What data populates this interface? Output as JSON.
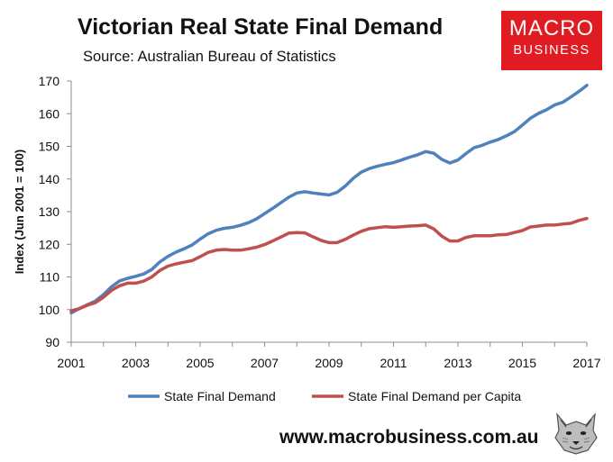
{
  "header": {
    "title": "Victorian Real State Final Demand",
    "subtitle": "Source: Australian Bureau of Statistics"
  },
  "brand": {
    "line1": "MACRO",
    "line2": "BUSINESS",
    "color": "#e11b22"
  },
  "footer": {
    "website": "www.macrobusiness.com.au",
    "logo_icon": "wolf-icon"
  },
  "chart_data": {
    "type": "line",
    "title": "Victorian Real State Final Demand",
    "subtitle": "Source: Australian Bureau of Statistics",
    "xlabel": "",
    "ylabel": "Index (Jun 2001 = 100)",
    "xlim": [
      2001,
      2017
    ],
    "ylim": [
      90,
      170
    ],
    "xticks": [
      2001,
      2003,
      2005,
      2007,
      2009,
      2011,
      2013,
      2015,
      2017
    ],
    "yticks": [
      90,
      100,
      110,
      120,
      130,
      140,
      150,
      160,
      170
    ],
    "legend": "bottom",
    "grid": false,
    "series": [
      {
        "name": "State Final Demand",
        "color": "#4f81bd",
        "x": [
          2001.0,
          2001.25,
          2001.5,
          2001.75,
          2002.0,
          2002.25,
          2002.5,
          2002.75,
          2003.0,
          2003.25,
          2003.5,
          2003.75,
          2004.0,
          2004.25,
          2004.5,
          2004.75,
          2005.0,
          2005.25,
          2005.5,
          2005.75,
          2006.0,
          2006.25,
          2006.5,
          2006.75,
          2007.0,
          2007.25,
          2007.5,
          2007.75,
          2008.0,
          2008.25,
          2008.5,
          2008.75,
          2009.0,
          2009.25,
          2009.5,
          2009.75,
          2010.0,
          2010.25,
          2010.5,
          2010.75,
          2011.0,
          2011.25,
          2011.5,
          2011.75,
          2012.0,
          2012.25,
          2012.5,
          2012.75,
          2013.0,
          2013.25,
          2013.5,
          2013.75,
          2014.0,
          2014.25,
          2014.5,
          2014.75,
          2015.0,
          2015.25,
          2015.5,
          2015.75,
          2016.0,
          2016.25,
          2016.5,
          2016.75,
          2017.0
        ],
        "values": [
          99.0,
          100.3,
          101.5,
          102.6,
          104.6,
          107.0,
          108.8,
          109.6,
          110.2,
          110.9,
          112.3,
          114.6,
          116.3,
          117.6,
          118.6,
          119.8,
          121.6,
          123.2,
          124.3,
          124.9,
          125.2,
          125.8,
          126.6,
          127.8,
          129.4,
          131.0,
          132.7,
          134.4,
          135.7,
          136.1,
          135.7,
          135.4,
          135.1,
          135.9,
          137.8,
          140.2,
          142.1,
          143.2,
          143.9,
          144.5,
          145.0,
          145.8,
          146.7,
          147.4,
          148.4,
          147.9,
          146.0,
          144.9,
          145.8,
          147.8,
          149.6,
          150.3,
          151.3,
          152.1,
          153.2,
          154.5,
          156.5,
          158.6,
          160.1,
          161.2,
          162.7,
          163.5,
          165.1,
          166.8,
          168.7
        ]
      },
      {
        "name": "State Final Demand per Capita",
        "color": "#c0504d",
        "x": [
          2001.0,
          2001.25,
          2001.5,
          2001.75,
          2002.0,
          2002.25,
          2002.5,
          2002.75,
          2003.0,
          2003.25,
          2003.5,
          2003.75,
          2004.0,
          2004.25,
          2004.5,
          2004.75,
          2005.0,
          2005.25,
          2005.5,
          2005.75,
          2006.0,
          2006.25,
          2006.5,
          2006.75,
          2007.0,
          2007.25,
          2007.5,
          2007.75,
          2008.0,
          2008.25,
          2008.5,
          2008.75,
          2009.0,
          2009.25,
          2009.5,
          2009.75,
          2010.0,
          2010.25,
          2010.5,
          2010.75,
          2011.0,
          2011.25,
          2011.5,
          2011.75,
          2012.0,
          2012.25,
          2012.5,
          2012.75,
          2013.0,
          2013.25,
          2013.5,
          2013.75,
          2014.0,
          2014.25,
          2014.5,
          2014.75,
          2015.0,
          2015.25,
          2015.5,
          2015.75,
          2016.0,
          2016.25,
          2016.5,
          2016.75,
          2017.0
        ],
        "values": [
          99.6,
          100.3,
          101.3,
          102.1,
          103.8,
          105.9,
          107.3,
          108.1,
          108.1,
          108.7,
          110.0,
          112.0,
          113.3,
          114.0,
          114.5,
          115.0,
          116.2,
          117.5,
          118.2,
          118.4,
          118.2,
          118.2,
          118.6,
          119.1,
          119.9,
          121.0,
          122.2,
          123.4,
          123.6,
          123.5,
          122.3,
          121.2,
          120.5,
          120.5,
          121.5,
          122.8,
          124.0,
          124.8,
          125.1,
          125.4,
          125.2,
          125.4,
          125.6,
          125.7,
          125.9,
          124.7,
          122.5,
          121.0,
          121.0,
          122.1,
          122.6,
          122.6,
          122.6,
          122.9,
          123.0,
          123.6,
          124.2,
          125.3,
          125.6,
          125.9,
          125.9,
          126.2,
          126.4,
          127.3,
          127.9
        ]
      }
    ]
  }
}
